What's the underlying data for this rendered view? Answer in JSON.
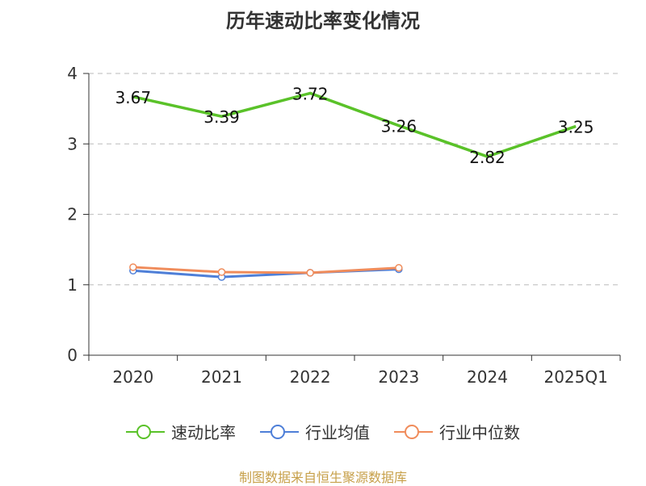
{
  "chart_data": {
    "type": "line",
    "title": "历年速动比率变化情况",
    "categories": [
      "2020",
      "2021",
      "2022",
      "2023",
      "2024",
      "2025Q1"
    ],
    "ylim": [
      0,
      4
    ],
    "yticks": [
      "0",
      "1",
      "2",
      "3",
      "4"
    ],
    "grid": true,
    "legend_position": "bottom",
    "series": [
      {
        "name": "速动比率",
        "color": "#5ac229",
        "values": [
          3.67,
          3.39,
          3.72,
          3.26,
          2.82,
          3.25
        ],
        "labels": [
          "3.67",
          "3.39",
          "3.72",
          "3.26",
          "2.82",
          "3.25"
        ],
        "show_markers": false
      },
      {
        "name": "行业均值",
        "color": "#4e7fd8",
        "values": [
          1.2,
          1.11,
          1.17,
          1.22,
          null,
          null
        ],
        "show_markers": true
      },
      {
        "name": "行业中位数",
        "color": "#f08c5b",
        "values": [
          1.25,
          1.18,
          1.17,
          1.24,
          null,
          null
        ],
        "show_markers": true
      }
    ]
  },
  "footer": "制图数据来自恒生聚源数据库"
}
